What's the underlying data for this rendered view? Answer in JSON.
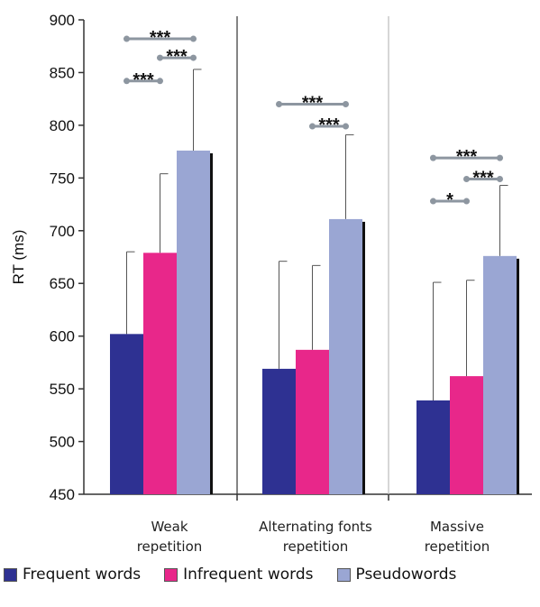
{
  "chart_data": {
    "type": "bar",
    "ylabel": "RT (ms)",
    "ylim": [
      450,
      900
    ],
    "yticks": [
      450,
      500,
      550,
      600,
      650,
      700,
      750,
      800,
      850,
      900
    ],
    "error_bars": "upper only",
    "categories": [
      {
        "line1": "Weak",
        "line2": "repetition"
      },
      {
        "line1": "Alternating fonts",
        "line2": "repetition"
      },
      {
        "line1": "Massive",
        "line2": "repetition"
      }
    ],
    "series": [
      {
        "name": "Frequent words",
        "color": "#2e3192",
        "values": [
          602,
          569,
          539
        ],
        "error_upper": [
          680,
          671,
          651
        ]
      },
      {
        "name": "Infrequent words",
        "color": "#e8278a",
        "values": [
          679,
          587,
          562
        ],
        "error_upper": [
          754,
          667,
          653
        ]
      },
      {
        "name": "Pseudowords",
        "color": "#9aa6d3",
        "values": [
          776,
          711,
          676
        ],
        "error_upper": [
          853,
          791,
          743
        ]
      }
    ],
    "significance": [
      {
        "group": 0,
        "from": 0,
        "to": 2,
        "label": "***",
        "level": 882
      },
      {
        "group": 0,
        "from": 1,
        "to": 2,
        "label": "***",
        "level": 864
      },
      {
        "group": 0,
        "from": 0,
        "to": 1,
        "label": "***",
        "level": 842
      },
      {
        "group": 1,
        "from": 0,
        "to": 2,
        "label": "***",
        "level": 820
      },
      {
        "group": 1,
        "from": 1,
        "to": 2,
        "label": "***",
        "level": 799
      },
      {
        "group": 2,
        "from": 0,
        "to": 2,
        "label": "***",
        "level": 769
      },
      {
        "group": 2,
        "from": 1,
        "to": 2,
        "label": "***",
        "level": 749
      },
      {
        "group": 2,
        "from": 0,
        "to": 1,
        "label": "*",
        "level": 728
      }
    ]
  }
}
